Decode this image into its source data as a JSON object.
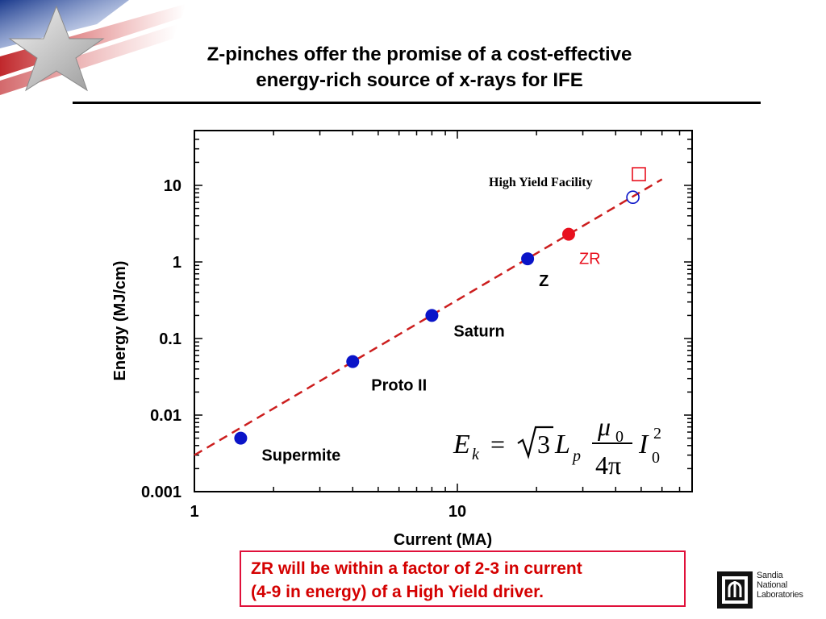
{
  "slide": {
    "title_line1": "Z-pinches offer the promise of a cost-effective",
    "title_line2": "energy-rich source of x-rays for IFE"
  },
  "chart_data": {
    "type": "scatter",
    "xlabel": "Current (MA)",
    "ylabel": "Energy (MJ/cm)",
    "x_scale": "log",
    "y_scale": "log",
    "xlim": [
      1,
      70
    ],
    "ylim": [
      0.001,
      40
    ],
    "x_ticks": [
      {
        "value": 1,
        "label": "1"
      },
      {
        "value": 10,
        "label": "10"
      }
    ],
    "y_ticks": [
      {
        "value": 0.001,
        "label": "0.001"
      },
      {
        "value": 0.01,
        "label": "0.01"
      },
      {
        "value": 0.1,
        "label": "0.1"
      },
      {
        "value": 1,
        "label": "1"
      },
      {
        "value": 10,
        "label": "10"
      }
    ],
    "grid": false,
    "points": [
      {
        "name": "Supermite",
        "x": 1.5,
        "y": 0.005,
        "marker": "filled-circle",
        "color": "#0a14c8"
      },
      {
        "name": "Proto II",
        "x": 4,
        "y": 0.05,
        "marker": "filled-circle",
        "color": "#0a14c8"
      },
      {
        "name": "Saturn",
        "x": 8,
        "y": 0.2,
        "marker": "filled-circle",
        "color": "#0a14c8"
      },
      {
        "name": "Z",
        "x": 18.5,
        "y": 1.1,
        "marker": "filled-circle",
        "color": "#0a14c8"
      },
      {
        "name": "ZR",
        "x": 26.5,
        "y": 2.3,
        "marker": "filled-circle",
        "color": "#e8101e"
      },
      {
        "name": "",
        "x": 46.5,
        "y": 7,
        "marker": "open-circle",
        "color": "#0a14c8"
      },
      {
        "name": "High Yield Facility",
        "x": 49,
        "y": 14,
        "marker": "open-square",
        "color": "#e8101e"
      }
    ],
    "fit_line": {
      "style": "dashed",
      "color": "#cc1e1e",
      "x": [
        1,
        60
      ],
      "y": [
        0.003,
        12
      ]
    },
    "formula": {
      "lhs": "E",
      "lhs_sub": "k",
      "eq": "=",
      "sqrt_arg": "3",
      "L": "L",
      "L_sub": "p",
      "mu": "μ",
      "mu_sub": "0",
      "den": "4π",
      "I": "I",
      "I_sub": "0",
      "I_sup": "2"
    }
  },
  "note": {
    "line1": "ZR will be within a factor of 2-3 in current",
    "line2": "(4-9 in energy) of a High Yield driver."
  },
  "logo": {
    "line1": "Sandia",
    "line2": "National",
    "line3": "Laboratories"
  },
  "colors": {
    "blue_marker": "#0a14c8",
    "red_marker": "#e8101e",
    "fit_line": "#cc1e1e",
    "note_text": "#d40000",
    "note_border": "#e0103a"
  }
}
